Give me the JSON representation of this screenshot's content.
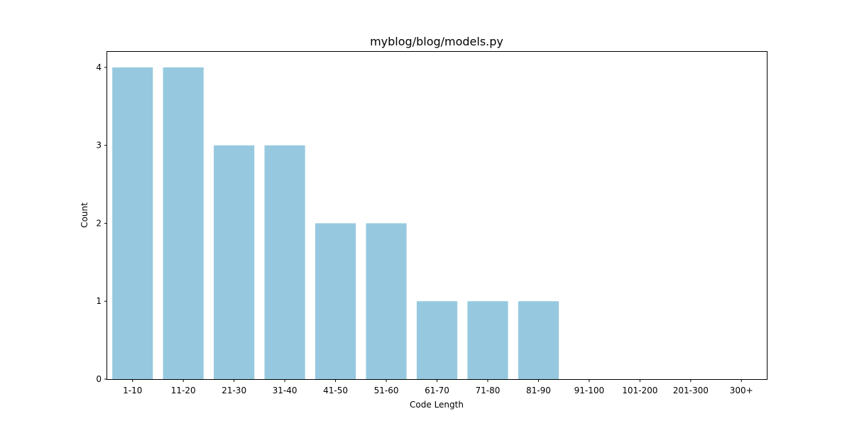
{
  "chart_data": {
    "type": "bar",
    "title": "myblog/blog/models.py",
    "xlabel": "Code Length",
    "ylabel": "Count",
    "categories": [
      "1-10",
      "11-20",
      "21-30",
      "31-40",
      "41-50",
      "51-60",
      "61-70",
      "71-80",
      "81-90",
      "91-100",
      "101-200",
      "201-300",
      "300+"
    ],
    "values": [
      4,
      4,
      3,
      3,
      2,
      2,
      1,
      1,
      1,
      0,
      0,
      0,
      0
    ],
    "ylim": [
      0,
      4.2
    ],
    "yticks": [
      0,
      1,
      2,
      3,
      4
    ],
    "bar_color": "#96c9df",
    "grid": false,
    "legend": "none"
  }
}
